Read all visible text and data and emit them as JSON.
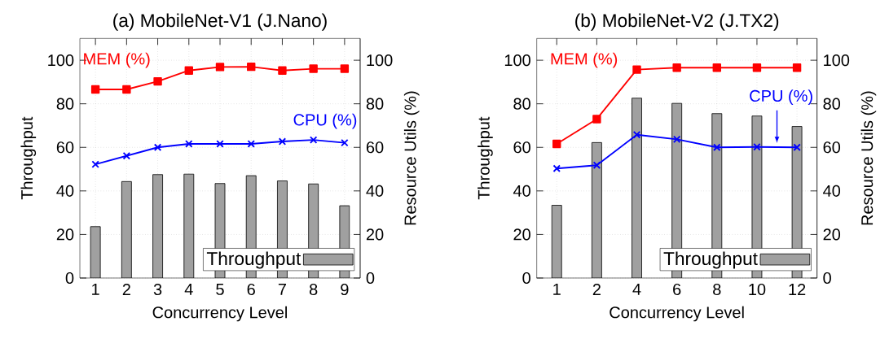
{
  "chart_data": [
    {
      "type": "bar",
      "title": "(a) MobileNet-V1 (J.Nano)",
      "xlabel": "Concurrency Level",
      "ylabel": "Throughput",
      "y2label": "Resource Utils (%)",
      "categories": [
        "1",
        "2",
        "3",
        "4",
        "5",
        "6",
        "7",
        "8",
        "9"
      ],
      "ylim": [
        0,
        110
      ],
      "yticks": [
        0,
        20,
        40,
        60,
        80,
        100
      ],
      "y2lim": [
        0,
        110
      ],
      "y2ticks": [
        0,
        20,
        40,
        60,
        80,
        100
      ],
      "grid": true,
      "legend": "bottom right",
      "series": [
        {
          "name": "Throughput",
          "color": "#a0a0a0",
          "values": [
            23.6,
            44.3,
            47.5,
            47.7,
            43.4,
            47,
            44.6,
            43.2,
            33.2
          ]
        },
        {
          "name": "MEM (%)",
          "type": "line",
          "axis": "y2",
          "color": "#ff0000",
          "marker": "square",
          "values": [
            86.6,
            86.6,
            90.3,
            95.3,
            96.9,
            97,
            95.3,
            96.1,
            96.1
          ]
        },
        {
          "name": "CPU (%)",
          "type": "line",
          "axis": "y2",
          "color": "#0000ff",
          "marker": "cross",
          "values": [
            52.2,
            56.1,
            60,
            61.6,
            61.6,
            61.6,
            62.7,
            63.4,
            62.1
          ]
        }
      ]
    },
    {
      "type": "bar",
      "title": "(b) MobileNet-V2 (J.TX2)",
      "xlabel": "Concurrency Level",
      "ylabel": "Throughput",
      "y2label": "Resource Utils (%)",
      "categories": [
        "1",
        "2",
        "4",
        "6",
        "8",
        "10",
        "12"
      ],
      "ylim": [
        0,
        110
      ],
      "yticks": [
        0,
        20,
        40,
        60,
        80,
        100
      ],
      "y2lim": [
        0,
        110
      ],
      "y2ticks": [
        0,
        20,
        40,
        60,
        80,
        100
      ],
      "grid": true,
      "legend": "bottom right",
      "series": [
        {
          "name": "Throughput",
          "color": "#a0a0a0",
          "values": [
            33.4,
            62.2,
            82.6,
            80.2,
            75.5,
            74.4,
            69.6
          ]
        },
        {
          "name": "MEM (%)",
          "type": "line",
          "axis": "y2",
          "color": "#ff0000",
          "marker": "square",
          "values": [
            61.6,
            73,
            95.7,
            96.6,
            96.6,
            96.6,
            96.6
          ]
        },
        {
          "name": "CPU (%)",
          "type": "line",
          "axis": "y2",
          "color": "#0000ff",
          "marker": "cross",
          "values": [
            50.3,
            51.8,
            65.8,
            63.7,
            60,
            60.2,
            60
          ]
        }
      ]
    }
  ]
}
